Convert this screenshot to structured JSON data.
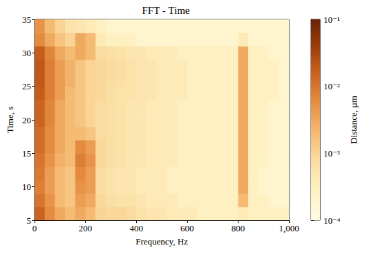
{
  "chart_data": {
    "type": "heatmap",
    "title": "FFT - Time",
    "x_label": "Frequency, Hz",
    "y_label": "Time, s",
    "xlim": [
      0,
      1000
    ],
    "xticks": [
      0,
      200,
      400,
      600,
      800,
      1000
    ],
    "ylim": [
      5,
      35
    ],
    "yticks": [
      5,
      10,
      15,
      20,
      25,
      30,
      35
    ],
    "grid": false,
    "x_edges": [
      0,
      40,
      80,
      120,
      160,
      200,
      240,
      280,
      320,
      360,
      400,
      440,
      480,
      520,
      560,
      600,
      640,
      680,
      720,
      760,
      800,
      840,
      880,
      920,
      960,
      1000
    ],
    "y_edges": [
      5,
      7,
      9,
      11,
      13,
      15,
      17,
      19,
      21,
      23,
      25,
      27,
      29,
      31,
      33,
      35
    ],
    "cells": [
      [
        0.015,
        0.006,
        0.003,
        0.002,
        0.003,
        0.002,
        0.001,
        0.0009,
        0.0009,
        0.0008,
        0.0006,
        0.0005,
        0.0005,
        0.0004,
        0.0004,
        0.0004,
        0.0003,
        0.0003,
        0.0003,
        0.0003,
        0.0004,
        0.0003,
        0.0003,
        0.0003,
        0.0003
      ],
      [
        0.01,
        0.005,
        0.002,
        0.0015,
        0.004,
        0.003,
        0.0009,
        0.0007,
        0.0006,
        0.0006,
        0.0005,
        0.0004,
        0.0004,
        0.0004,
        0.0003,
        0.0003,
        0.0003,
        0.0003,
        0.0003,
        0.0003,
        0.002,
        0.0003,
        0.0003,
        0.0002,
        0.0002
      ],
      [
        0.008,
        0.004,
        0.002,
        0.0015,
        0.005,
        0.004,
        0.0008,
        0.0006,
        0.0005,
        0.0005,
        0.0004,
        0.0004,
        0.0004,
        0.0003,
        0.0003,
        0.0003,
        0.0003,
        0.0003,
        0.0003,
        0.0003,
        0.003,
        0.0003,
        0.0002,
        0.0002,
        0.0002
      ],
      [
        0.009,
        0.004,
        0.002,
        0.0015,
        0.006,
        0.004,
        0.0008,
        0.0006,
        0.0005,
        0.0005,
        0.0004,
        0.0004,
        0.0004,
        0.0003,
        0.0003,
        0.0003,
        0.0003,
        0.0003,
        0.0003,
        0.0003,
        0.003,
        0.0003,
        0.0002,
        0.0002,
        0.0002
      ],
      [
        0.01,
        0.005,
        0.0025,
        0.002,
        0.008,
        0.005,
        0.0009,
        0.0007,
        0.0006,
        0.0005,
        0.0005,
        0.0004,
        0.0004,
        0.0004,
        0.0003,
        0.0003,
        0.0003,
        0.0003,
        0.0003,
        0.0003,
        0.003,
        0.0003,
        0.0003,
        0.0002,
        0.0002
      ],
      [
        0.012,
        0.006,
        0.003,
        0.002,
        0.006,
        0.004,
        0.0009,
        0.0007,
        0.0006,
        0.0005,
        0.0005,
        0.0004,
        0.0004,
        0.0004,
        0.0003,
        0.0003,
        0.0003,
        0.0003,
        0.0003,
        0.0003,
        0.003,
        0.0003,
        0.0003,
        0.0002,
        0.0002
      ],
      [
        0.012,
        0.006,
        0.003,
        0.002,
        0.002,
        0.0015,
        0.0008,
        0.0007,
        0.0006,
        0.0005,
        0.0005,
        0.0004,
        0.0004,
        0.0004,
        0.0003,
        0.0003,
        0.0003,
        0.0003,
        0.0003,
        0.0003,
        0.003,
        0.0003,
        0.0003,
        0.0002,
        0.0002
      ],
      [
        0.015,
        0.007,
        0.003,
        0.002,
        0.0015,
        0.001,
        0.0008,
        0.0007,
        0.0006,
        0.0005,
        0.0005,
        0.0004,
        0.0004,
        0.0004,
        0.0003,
        0.0003,
        0.0003,
        0.0003,
        0.0003,
        0.0003,
        0.003,
        0.0003,
        0.0003,
        0.0002,
        0.0002
      ],
      [
        0.015,
        0.007,
        0.003,
        0.002,
        0.0015,
        0.001,
        0.0008,
        0.0007,
        0.0006,
        0.0005,
        0.0005,
        0.0004,
        0.0004,
        0.0004,
        0.0003,
        0.0003,
        0.0003,
        0.0003,
        0.0003,
        0.0003,
        0.003,
        0.0003,
        0.0003,
        0.0002,
        0.0002
      ],
      [
        0.018,
        0.008,
        0.004,
        0.002,
        0.0015,
        0.001,
        0.0009,
        0.0007,
        0.0006,
        0.0006,
        0.0005,
        0.0005,
        0.0004,
        0.0004,
        0.0004,
        0.0003,
        0.0003,
        0.0003,
        0.0003,
        0.0003,
        0.003,
        0.0003,
        0.0003,
        0.0003,
        0.0002
      ],
      [
        0.02,
        0.008,
        0.004,
        0.0025,
        0.0015,
        0.001,
        0.0009,
        0.0008,
        0.0007,
        0.0006,
        0.0005,
        0.0005,
        0.0004,
        0.0004,
        0.0004,
        0.0003,
        0.0003,
        0.0003,
        0.0003,
        0.0003,
        0.003,
        0.0003,
        0.0003,
        0.0003,
        0.0002
      ],
      [
        0.02,
        0.008,
        0.004,
        0.0025,
        0.0015,
        0.001,
        0.0009,
        0.0008,
        0.0007,
        0.0006,
        0.0005,
        0.0005,
        0.0004,
        0.0004,
        0.0004,
        0.0003,
        0.0003,
        0.0003,
        0.0003,
        0.0003,
        0.003,
        0.0003,
        0.0003,
        0.0003,
        0.0002
      ],
      [
        0.018,
        0.007,
        0.003,
        0.002,
        0.003,
        0.002,
        0.0008,
        0.0007,
        0.0006,
        0.0005,
        0.0005,
        0.0004,
        0.0004,
        0.0004,
        0.0003,
        0.0003,
        0.0003,
        0.0003,
        0.0003,
        0.0003,
        0.003,
        0.0003,
        0.0003,
        0.0002,
        0.0002
      ],
      [
        0.006,
        0.003,
        0.0015,
        0.001,
        0.003,
        0.002,
        0.0004,
        0.0003,
        0.0003,
        0.0003,
        0.0002,
        0.0002,
        0.0002,
        0.0002,
        0.0002,
        0.0002,
        0.0002,
        0.0002,
        0.0002,
        0.0002,
        0.0004,
        0.0002,
        0.0002,
        0.0002,
        0.0002
      ],
      [
        0.005,
        0.002,
        0.001,
        0.0006,
        0.0005,
        0.0004,
        0.0003,
        0.0002,
        0.0002,
        0.0002,
        0.0002,
        0.0002,
        0.0002,
        0.0002,
        0.0002,
        0.0002,
        0.0002,
        0.0002,
        0.0002,
        0.0002,
        0.0002,
        0.0002,
        0.0002,
        0.0002,
        0.0002
      ]
    ],
    "colorbar_label": "Distance, µm",
    "colorbar_lim": [
      0.0001,
      0.1
    ],
    "colorbar_ticks": [
      {
        "value": 0.0001,
        "label": "10⁻⁴"
      },
      {
        "value": 0.001,
        "label": "10⁻³"
      },
      {
        "value": 0.01,
        "label": "10⁻²"
      },
      {
        "value": 0.1,
        "label": "10⁻¹"
      }
    ]
  }
}
